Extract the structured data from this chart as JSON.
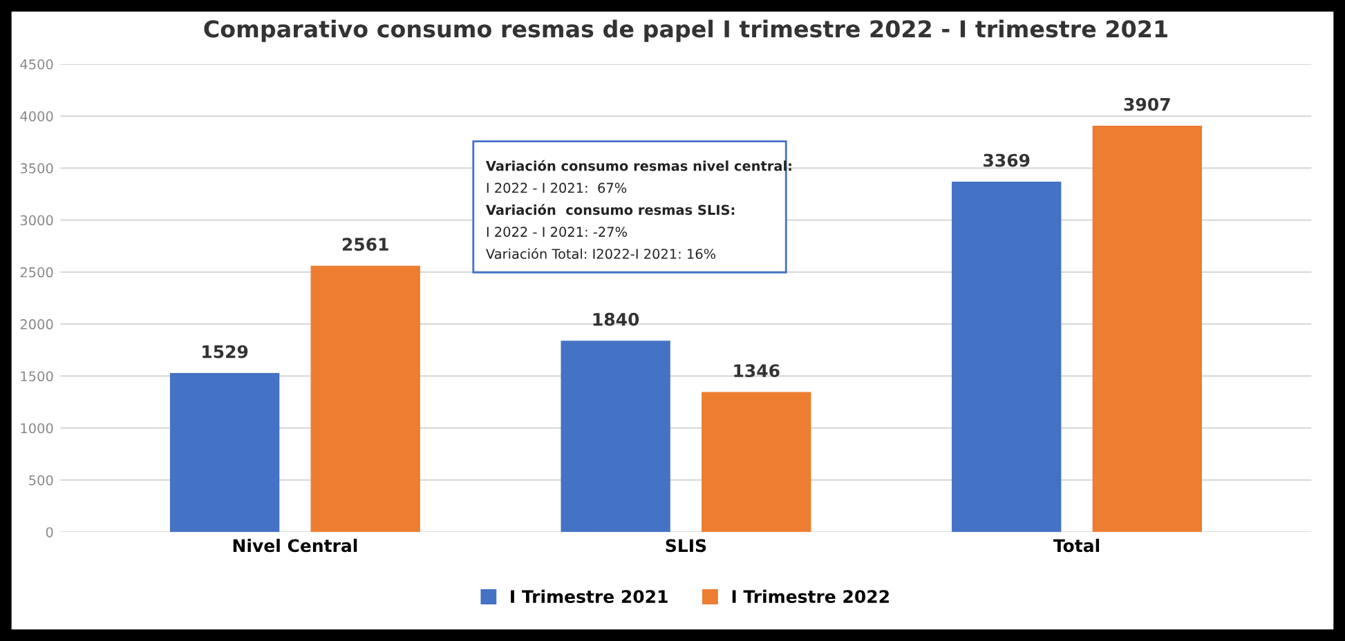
{
  "chart_data": {
    "type": "bar",
    "title": "Comparativo consumo resmas de papel I trimestre 2022 - I trimestre 2021",
    "categories": [
      "Nivel Central",
      "SLIS",
      "Total"
    ],
    "series": [
      {
        "name": "I Trimestre 2021",
        "color": "#4472c4",
        "values": [
          1529,
          1840,
          3369
        ]
      },
      {
        "name": "I Trimestre 2022",
        "color": "#ed7d31",
        "values": [
          2561,
          1346,
          3907
        ]
      }
    ],
    "ylim": [
      0,
      4500
    ],
    "yticks": [
      0,
      500,
      1000,
      1500,
      2000,
      2500,
      3000,
      3500,
      4000,
      4500
    ],
    "grid": "y",
    "legend": "bottom",
    "data_labels": true,
    "annotations": [
      "Variación consumo resmas nivel central:",
      "I 2022 - I 2021:  67%",
      "Variación  consumo resmas SLIS:",
      "I 2022 - I 2021: -27%",
      "Variación Total: I2022-I 2021: 16%"
    ]
  }
}
